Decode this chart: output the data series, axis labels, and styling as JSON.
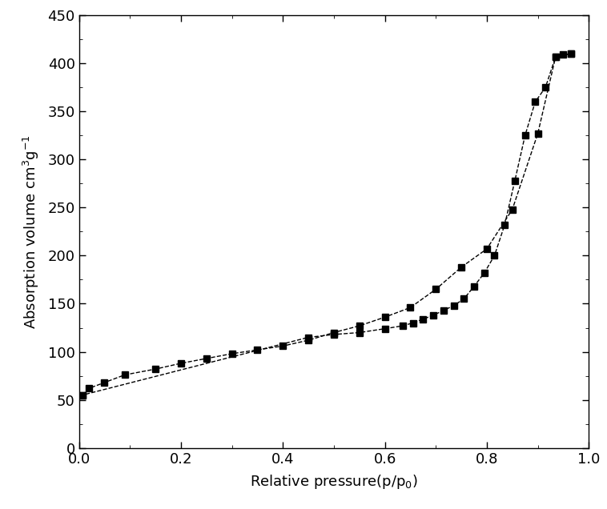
{
  "adsorption_x": [
    0.007,
    0.02,
    0.05,
    0.09,
    0.15,
    0.2,
    0.25,
    0.3,
    0.35,
    0.4,
    0.45,
    0.5,
    0.55,
    0.6,
    0.65,
    0.7,
    0.75,
    0.8,
    0.85,
    0.9,
    0.935,
    0.965
  ],
  "adsorption_y": [
    55,
    62,
    68,
    76,
    82,
    88,
    93,
    98,
    102,
    106,
    112,
    120,
    127,
    136,
    146,
    165,
    188,
    207,
    248,
    327,
    407,
    410
  ],
  "desorption_x": [
    0.965,
    0.95,
    0.935,
    0.915,
    0.895,
    0.875,
    0.855,
    0.835,
    0.815,
    0.795,
    0.775,
    0.755,
    0.735,
    0.715,
    0.695,
    0.675,
    0.655,
    0.635,
    0.6,
    0.55,
    0.5,
    0.45,
    0.007
  ],
  "desorption_y": [
    410,
    409,
    407,
    375,
    360,
    325,
    278,
    232,
    200,
    182,
    168,
    155,
    148,
    143,
    138,
    134,
    130,
    127,
    124,
    120,
    118,
    115,
    55
  ],
  "xlabel": "Relative pressure(p/p$_0$)",
  "ylabel": "Absorption volume cm$^3$g$^{-1}$",
  "xlim": [
    0.0,
    1.0
  ],
  "ylim": [
    0,
    450
  ],
  "xticks": [
    0.0,
    0.2,
    0.4,
    0.6,
    0.8,
    1.0
  ],
  "yticks": [
    0,
    50,
    100,
    150,
    200,
    250,
    300,
    350,
    400,
    450
  ],
  "line_color": "#000000",
  "marker": "s",
  "markersize": 6,
  "linestyle": "--",
  "linewidth": 1.0,
  "background_color": "#ffffff",
  "font_size_ticks": 13,
  "font_size_labels": 13
}
